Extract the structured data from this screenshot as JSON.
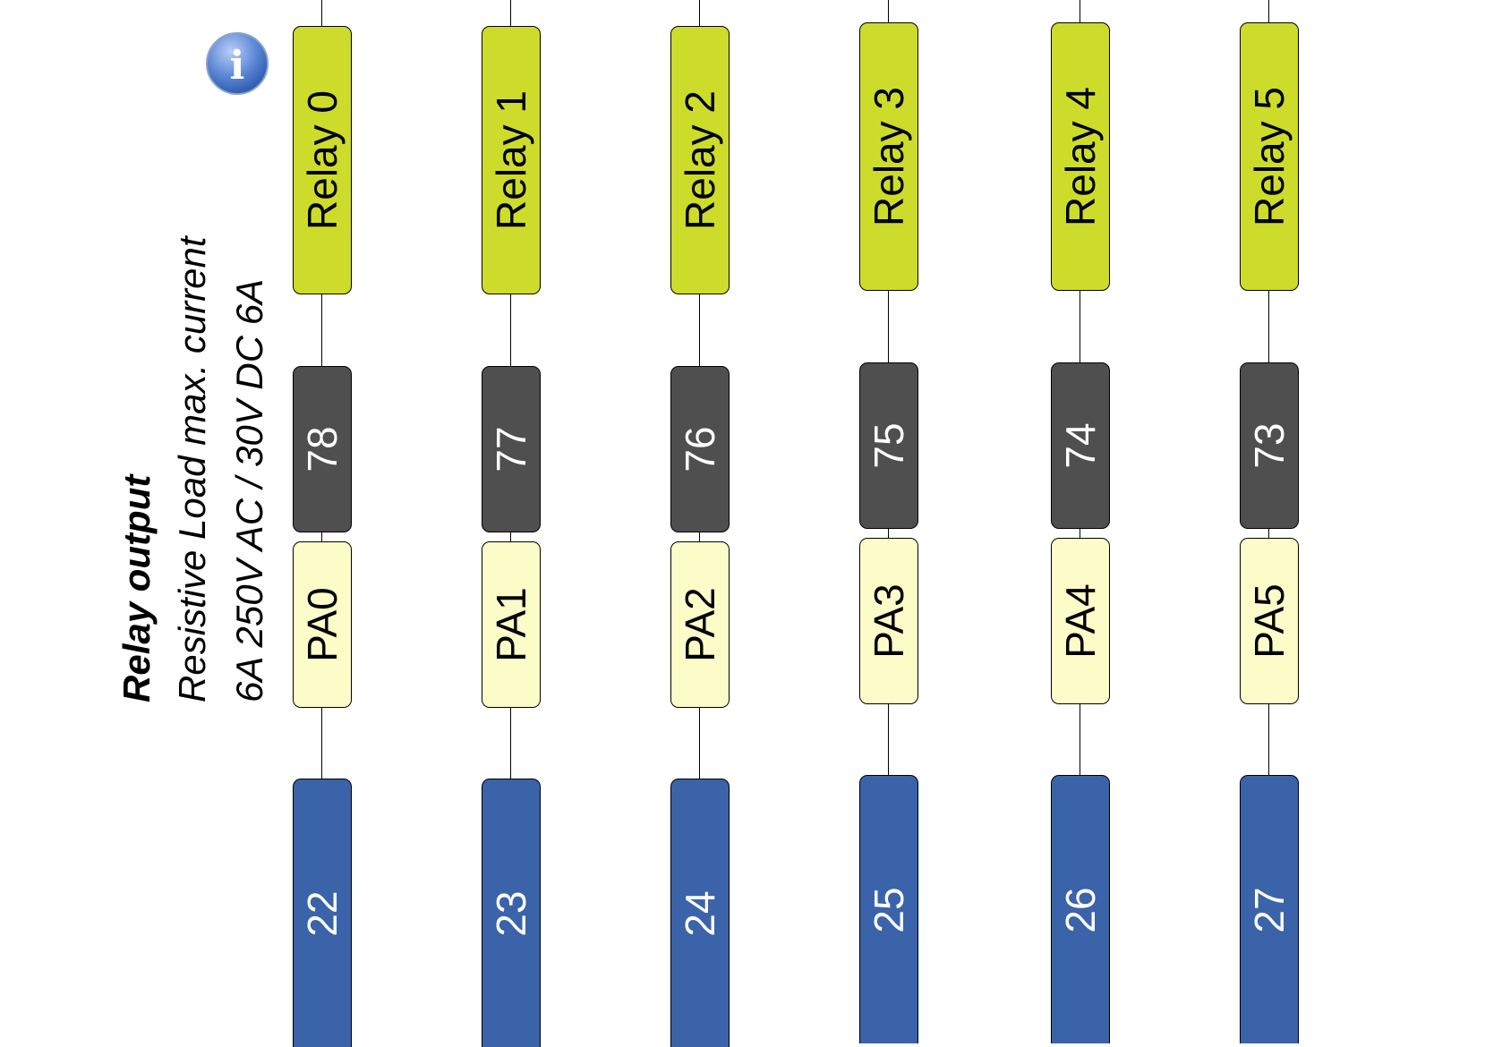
{
  "caption": {
    "title": "Relay output",
    "line1": "Resistive Load max. current",
    "line2": "6A 250V AC / 30V DC 6A"
  },
  "info_icon": {
    "glyph": "i",
    "icon": "info-icon"
  },
  "channels": [
    {
      "relay": "Relay 0",
      "pin": "78",
      "port": "PA0",
      "terminal": "22"
    },
    {
      "relay": "Relay 1",
      "pin": "77",
      "port": "PA1",
      "terminal": "23"
    },
    {
      "relay": "Relay 2",
      "pin": "76",
      "port": "PA2",
      "terminal": "24"
    },
    {
      "relay": "Relay 3",
      "pin": "75",
      "port": "PA3",
      "terminal": "25"
    },
    {
      "relay": "Relay 4",
      "pin": "74",
      "port": "PA4",
      "terminal": "26"
    },
    {
      "relay": "Relay 5",
      "pin": "73",
      "port": "PA5",
      "terminal": "27"
    }
  ],
  "colors": {
    "relay": "#cddc2a",
    "pin": "#4f4f4f",
    "port": "#fcfcc8",
    "terminal": "#3a63aa"
  }
}
